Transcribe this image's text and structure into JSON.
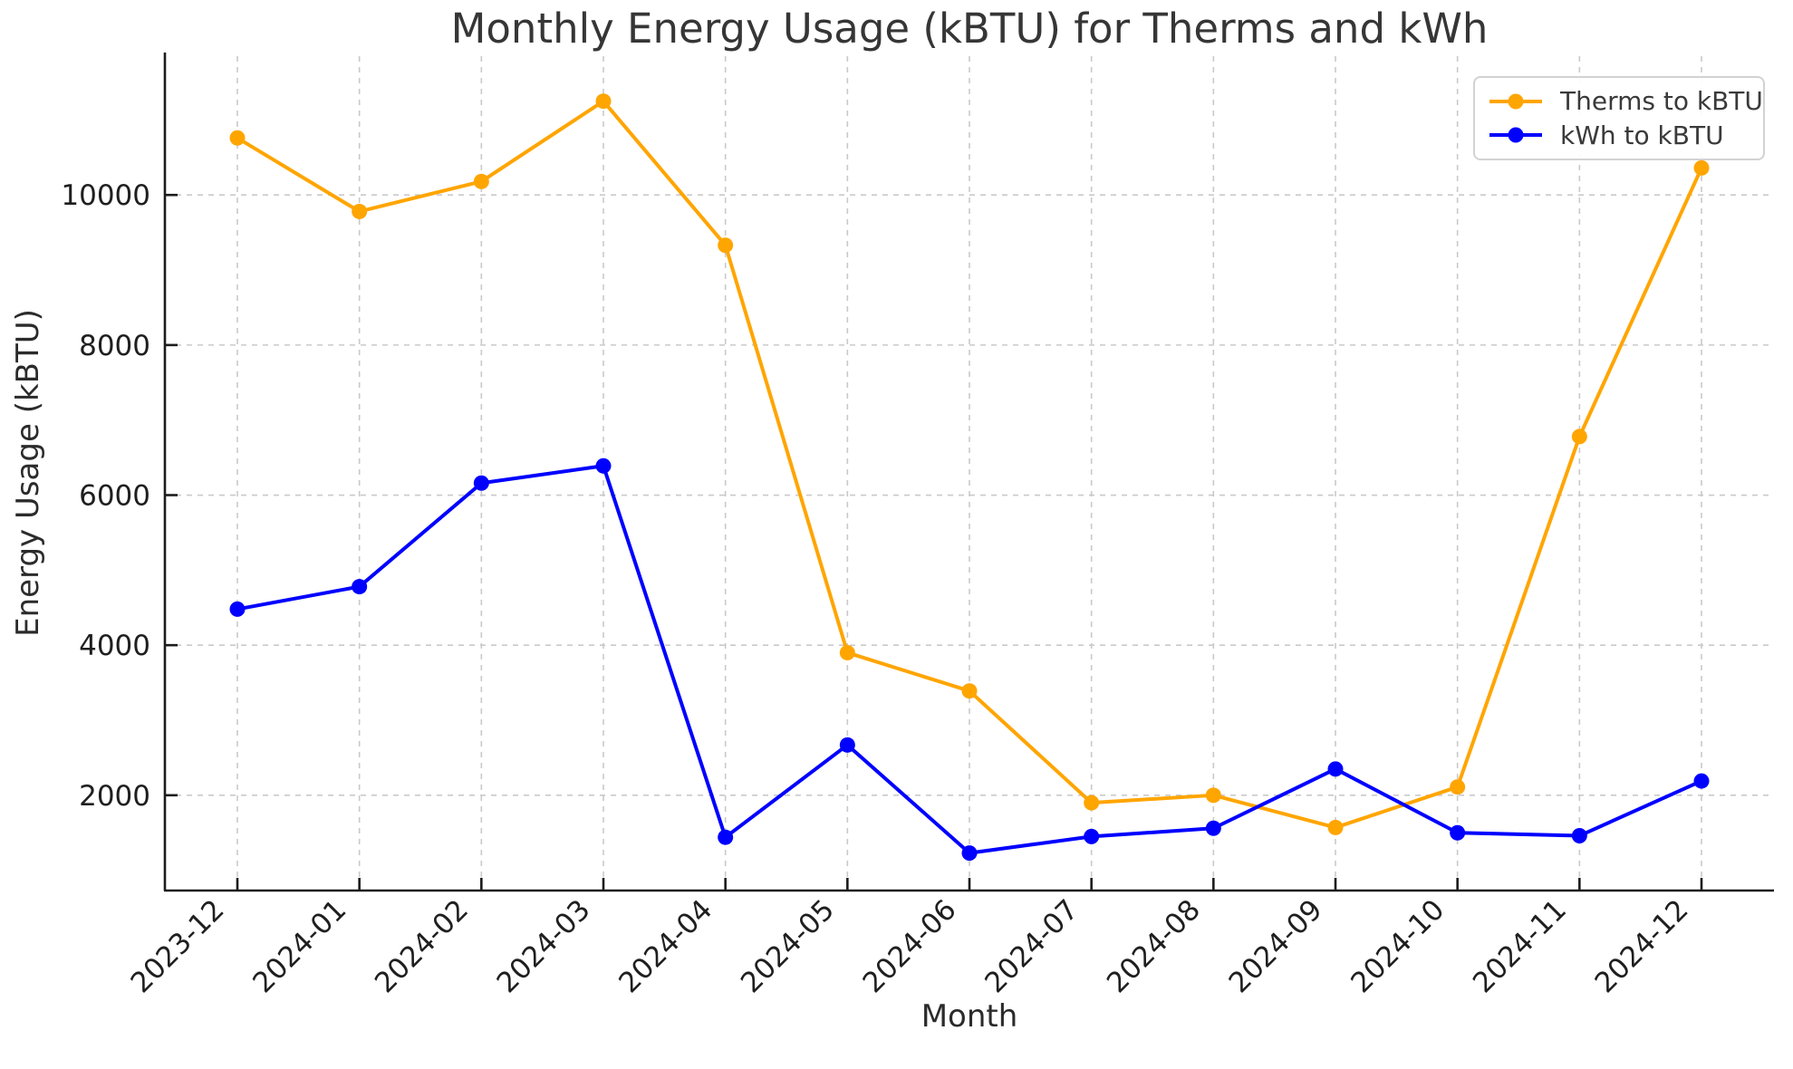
{
  "chart_data": {
    "type": "line",
    "title": "Monthly Energy Usage (kBTU) for Therms and kWh",
    "xlabel": "Month",
    "ylabel": "Energy Usage (kBTU)",
    "categories": [
      "2023-12",
      "2024-01",
      "2024-02",
      "2024-03",
      "2024-04",
      "2024-05",
      "2024-06",
      "2024-07",
      "2024-08",
      "2024-09",
      "2024-10",
      "2024-11",
      "2024-12"
    ],
    "series": [
      {
        "name": "Therms to kBTU",
        "color": "#FFA500",
        "marker": "circle",
        "values": [
          10760,
          9780,
          10180,
          11250,
          9330,
          3900,
          3390,
          1900,
          2000,
          1570,
          2110,
          6780,
          10360
        ]
      },
      {
        "name": "kWh to kBTU",
        "color": "#0000FF",
        "marker": "circle",
        "values": [
          4480,
          4780,
          6160,
          6390,
          1440,
          2670,
          1230,
          1450,
          1560,
          2350,
          1500,
          1460,
          2190
        ]
      }
    ],
    "yticks": [
      2000,
      4000,
      6000,
      8000,
      10000
    ],
    "ylim": [
      730,
      11850
    ],
    "x_tick_rotation_deg": 45,
    "grid": {
      "visible": true,
      "style": "dashed",
      "color": "#C9C9C9"
    },
    "legend": {
      "position": "upper right"
    },
    "axis_color": "#1C1C1C",
    "tick_label_color": "#1F1F1F",
    "background": "#FFFFFF"
  }
}
